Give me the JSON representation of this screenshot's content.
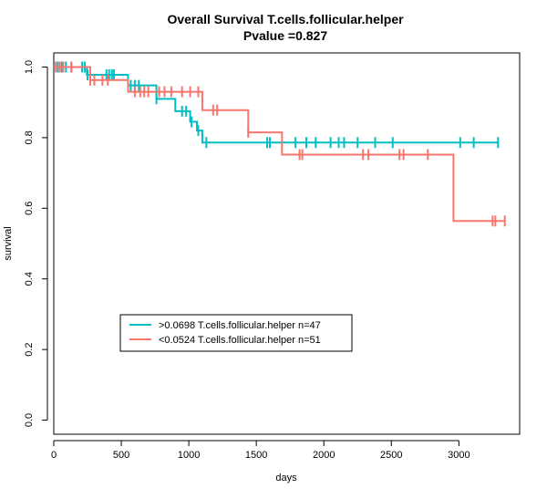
{
  "chart_data": {
    "type": "line",
    "subtype": "kaplan-meier",
    "title": "Overall Survival T.cells.follicular.helper",
    "subtitle": "Pvalue =0.827",
    "xlabel": "days",
    "ylabel": "survival",
    "xlim": [
      0,
      3450
    ],
    "ylim": [
      -0.04,
      1.04
    ],
    "xticks": [
      0,
      500,
      1000,
      1500,
      2000,
      2500,
      3000
    ],
    "yticks": [
      0.0,
      0.2,
      0.4,
      0.6,
      0.8,
      1.0
    ],
    "grid": false,
    "legend_position": "bottom-left",
    "series": [
      {
        "name": ">0.0698 T.cells.follicular.helper n=47",
        "color": "#00BFC4",
        "steps": [
          [
            0,
            1.0
          ],
          [
            245,
            0.978
          ],
          [
            550,
            0.948
          ],
          [
            760,
            0.91
          ],
          [
            900,
            0.875
          ],
          [
            1010,
            0.845
          ],
          [
            1060,
            0.82
          ],
          [
            1100,
            0.786
          ],
          [
            3290,
            0.786
          ]
        ],
        "censor_times": [
          30,
          60,
          90,
          130,
          210,
          230,
          250,
          390,
          410,
          430,
          445,
          570,
          600,
          630,
          760,
          950,
          980,
          1020,
          1070,
          1130,
          1580,
          1600,
          1790,
          1870,
          1940,
          2050,
          2110,
          2150,
          2250,
          2380,
          2510,
          3010,
          3110,
          3290
        ]
      },
      {
        "name": "<0.0524 T.cells.follicular.helper n=51",
        "color": "#F8766D",
        "steps": [
          [
            0,
            1.0
          ],
          [
            270,
            0.963
          ],
          [
            550,
            0.93
          ],
          [
            760,
            0.93
          ],
          [
            1100,
            0.878
          ],
          [
            1440,
            0.815
          ],
          [
            1690,
            0.752
          ],
          [
            2960,
            0.564
          ],
          [
            3340,
            0.564
          ]
        ],
        "censor_times": [
          15,
          45,
          70,
          130,
          270,
          300,
          360,
          400,
          600,
          640,
          670,
          700,
          780,
          820,
          870,
          950,
          1010,
          1070,
          1180,
          1210,
          1440,
          1820,
          1840,
          2290,
          2330,
          2560,
          2590,
          2770,
          3250,
          3270,
          3340
        ]
      }
    ]
  }
}
